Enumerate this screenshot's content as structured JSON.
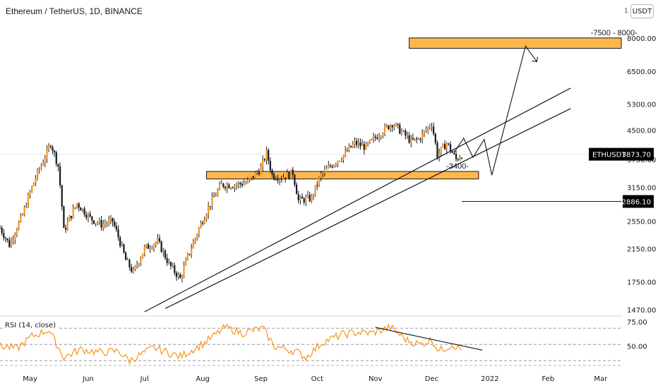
{
  "header": {
    "title": "Ethereum / TetherUS, 1D, BINANCE",
    "currency_button": "USDT",
    "currency_prefix": "1"
  },
  "colors": {
    "up": "#f7931a",
    "down": "#131722",
    "zone_fill": "#ffb74d",
    "rsi_line": "#f7931a",
    "label_bg": "#000000"
  },
  "chart_data": [
    {
      "type": "candlestick",
      "title": "Ethereum / TetherUS, 1D, BINANCE",
      "y_scale": "log",
      "ylim": [
        1400,
        8500
      ],
      "y_ticks": [
        "8000.00",
        "6500.00",
        "5300.00",
        "4500.00",
        "3750.00",
        "3150.00",
        "2550.00",
        "2150.00",
        "1750.00",
        "1470.00"
      ],
      "x_ticks": [
        "May",
        "Jun",
        "Jul",
        "Aug",
        "Sep",
        "Oct",
        "Nov",
        "Dec",
        "2022",
        "Feb",
        "Mar"
      ],
      "x_tick_dates": [
        "2021-05-01",
        "2021-06-01",
        "2021-07-01",
        "2021-08-01",
        "2021-09-01",
        "2021-10-01",
        "2021-11-01",
        "2021-12-01",
        "2022-01-01",
        "2022-02-01",
        "2022-03-01"
      ],
      "xlim": [
        "2021-04-15",
        "2022-03-12"
      ],
      "symbol": "ETHUSDT",
      "last_price": "3873.70",
      "marked_level": "2886.10",
      "annotations": {
        "target_zone": {
          "label": "-7500 - 8000-",
          "from": 7500,
          "to": 8000,
          "start": "2021-11-19"
        },
        "support_zone": {
          "label": "-3400-",
          "from": 3320,
          "to": 3480,
          "start": "2021-08-03",
          "end": "2021-12-26"
        },
        "channel_lower": [
          [
            "2021-07-12",
            1480
          ],
          [
            "2022-02-13",
            5150
          ]
        ],
        "channel_upper": [
          [
            "2021-07-01",
            1450
          ],
          [
            "2022-02-13",
            5850
          ]
        ],
        "projection_path": [
          [
            "2021-12-13",
            3920
          ],
          [
            "2021-12-18",
            4280
          ],
          [
            "2021-12-23",
            3800
          ],
          [
            "2021-12-29",
            4250
          ],
          [
            "2022-01-02",
            3400
          ],
          [
            "2022-01-20",
            7600
          ],
          [
            "2022-01-26",
            6900
          ]
        ],
        "grid_reference": 3870
      },
      "keypoints": [
        [
          "2021-04-15",
          2450
        ],
        [
          "2021-04-20",
          2200
        ],
        [
          "2021-04-27",
          2650
        ],
        [
          "2021-05-04",
          3350
        ],
        [
          "2021-05-10",
          3900
        ],
        [
          "2021-05-12",
          4150
        ],
        [
          "2021-05-16",
          3600
        ],
        [
          "2021-05-19",
          2400
        ],
        [
          "2021-05-26",
          2850
        ],
        [
          "2021-06-02",
          2600
        ],
        [
          "2021-06-08",
          2500
        ],
        [
          "2021-06-14",
          2550
        ],
        [
          "2021-06-21",
          2000
        ],
        [
          "2021-06-25",
          1850
        ],
        [
          "2021-07-01",
          2150
        ],
        [
          "2021-07-08",
          2250
        ],
        [
          "2021-07-14",
          1950
        ],
        [
          "2021-07-20",
          1780
        ],
        [
          "2021-07-28",
          2300
        ],
        [
          "2021-08-05",
          2850
        ],
        [
          "2021-08-11",
          3200
        ],
        [
          "2021-08-18",
          3200
        ],
        [
          "2021-08-25",
          3250
        ],
        [
          "2021-09-01",
          3550
        ],
        [
          "2021-09-04",
          3900
        ],
        [
          "2021-09-07",
          3400
        ],
        [
          "2021-09-12",
          3350
        ],
        [
          "2021-09-18",
          3450
        ],
        [
          "2021-09-21",
          2900
        ],
        [
          "2021-09-28",
          2950
        ],
        [
          "2021-10-03",
          3400
        ],
        [
          "2021-10-08",
          3600
        ],
        [
          "2021-10-15",
          3850
        ],
        [
          "2021-10-21",
          4150
        ],
        [
          "2021-10-27",
          4050
        ],
        [
          "2021-11-03",
          4400
        ],
        [
          "2021-11-10",
          4700
        ],
        [
          "2021-11-16",
          4400
        ],
        [
          "2021-11-20",
          4200
        ],
        [
          "2021-11-24",
          4250
        ],
        [
          "2021-12-01",
          4700
        ],
        [
          "2021-12-04",
          3850
        ],
        [
          "2021-12-09",
          4150
        ],
        [
          "2021-12-14",
          3750
        ],
        [
          "2021-12-17",
          3870
        ]
      ]
    },
    {
      "type": "line",
      "title": "RSI (14, close)",
      "y_ticks": [
        "75.00",
        "50.00"
      ],
      "levels": [
        70,
        50,
        30
      ],
      "ylim": [
        25,
        85
      ],
      "series": [
        {
          "name": "RSI (14, close)",
          "keypoints": [
            [
              "2021-04-15",
              48
            ],
            [
              "2021-04-24",
              45
            ],
            [
              "2021-05-02",
              60
            ],
            [
              "2021-05-11",
              68
            ],
            [
              "2021-05-19",
              34
            ],
            [
              "2021-05-28",
              44
            ],
            [
              "2021-06-08",
              40
            ],
            [
              "2021-06-17",
              42
            ],
            [
              "2021-06-23",
              30
            ],
            [
              "2021-07-06",
              46
            ],
            [
              "2021-07-20",
              35
            ],
            [
              "2021-08-02",
              52
            ],
            [
              "2021-08-13",
              71
            ],
            [
              "2021-08-22",
              64
            ],
            [
              "2021-09-02",
              70
            ],
            [
              "2021-09-08",
              48
            ],
            [
              "2021-09-20",
              41
            ],
            [
              "2021-09-25",
              34
            ],
            [
              "2021-10-04",
              53
            ],
            [
              "2021-10-14",
              62
            ],
            [
              "2021-10-22",
              65
            ],
            [
              "2021-10-30",
              64
            ],
            [
              "2021-11-09",
              71
            ],
            [
              "2021-11-18",
              55
            ],
            [
              "2021-11-25",
              50
            ],
            [
              "2021-12-01",
              56
            ],
            [
              "2021-12-05",
              42
            ],
            [
              "2021-12-12",
              50
            ],
            [
              "2021-12-17",
              43
            ]
          ]
        }
      ],
      "divergence_line": [
        [
          "2021-11-01",
          71
        ],
        [
          "2021-12-28",
          43
        ]
      ]
    }
  ]
}
